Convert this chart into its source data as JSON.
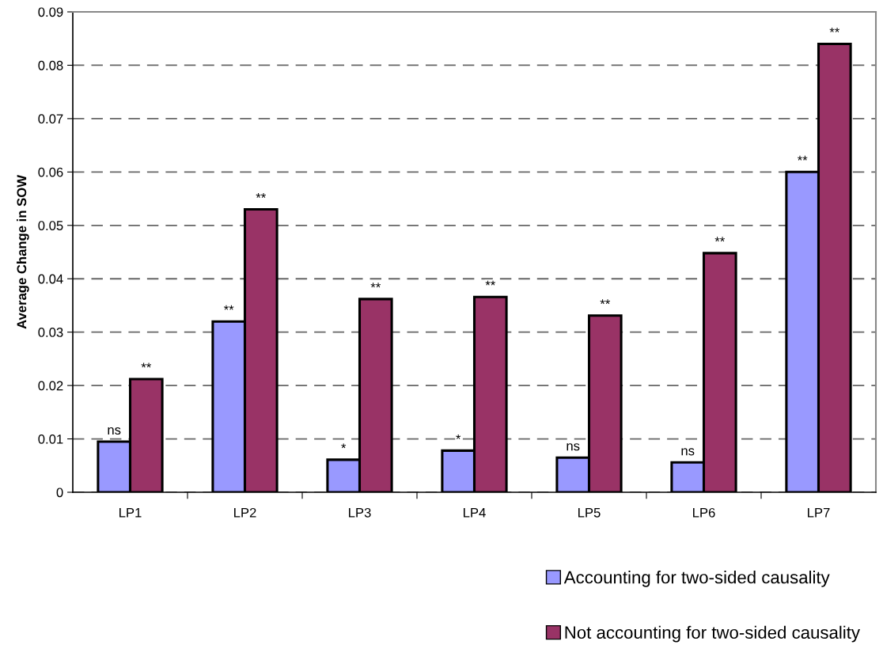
{
  "chart_data": {
    "type": "bar",
    "ylabel": "Average Change in SOW",
    "categories": [
      "LP1",
      "LP2",
      "LP3",
      "LP4",
      "LP5",
      "LP6",
      "LP7"
    ],
    "series": [
      {
        "name": "Accounting for two-sided causality",
        "color": "#9999ff",
        "values": [
          0.0095,
          0.032,
          0.0061,
          0.0078,
          0.0065,
          0.0056,
          0.06
        ],
        "value_labels": [
          "ns",
          "**",
          "*",
          "*",
          "ns",
          "ns",
          "**"
        ]
      },
      {
        "name": "Not accounting for two-sided causality",
        "color": "#993366",
        "values": [
          0.0212,
          0.053,
          0.0362,
          0.0366,
          0.0331,
          0.0448,
          0.084
        ],
        "value_labels": [
          "**",
          "**",
          "**",
          "**",
          "**",
          "**",
          "**"
        ]
      }
    ],
    "ylim": [
      0,
      0.09
    ],
    "yticks": [
      0,
      0.01,
      0.02,
      0.03,
      0.04,
      0.05,
      0.06,
      0.07,
      0.08,
      0.09
    ],
    "grid": "y",
    "legend": "bottom right"
  }
}
